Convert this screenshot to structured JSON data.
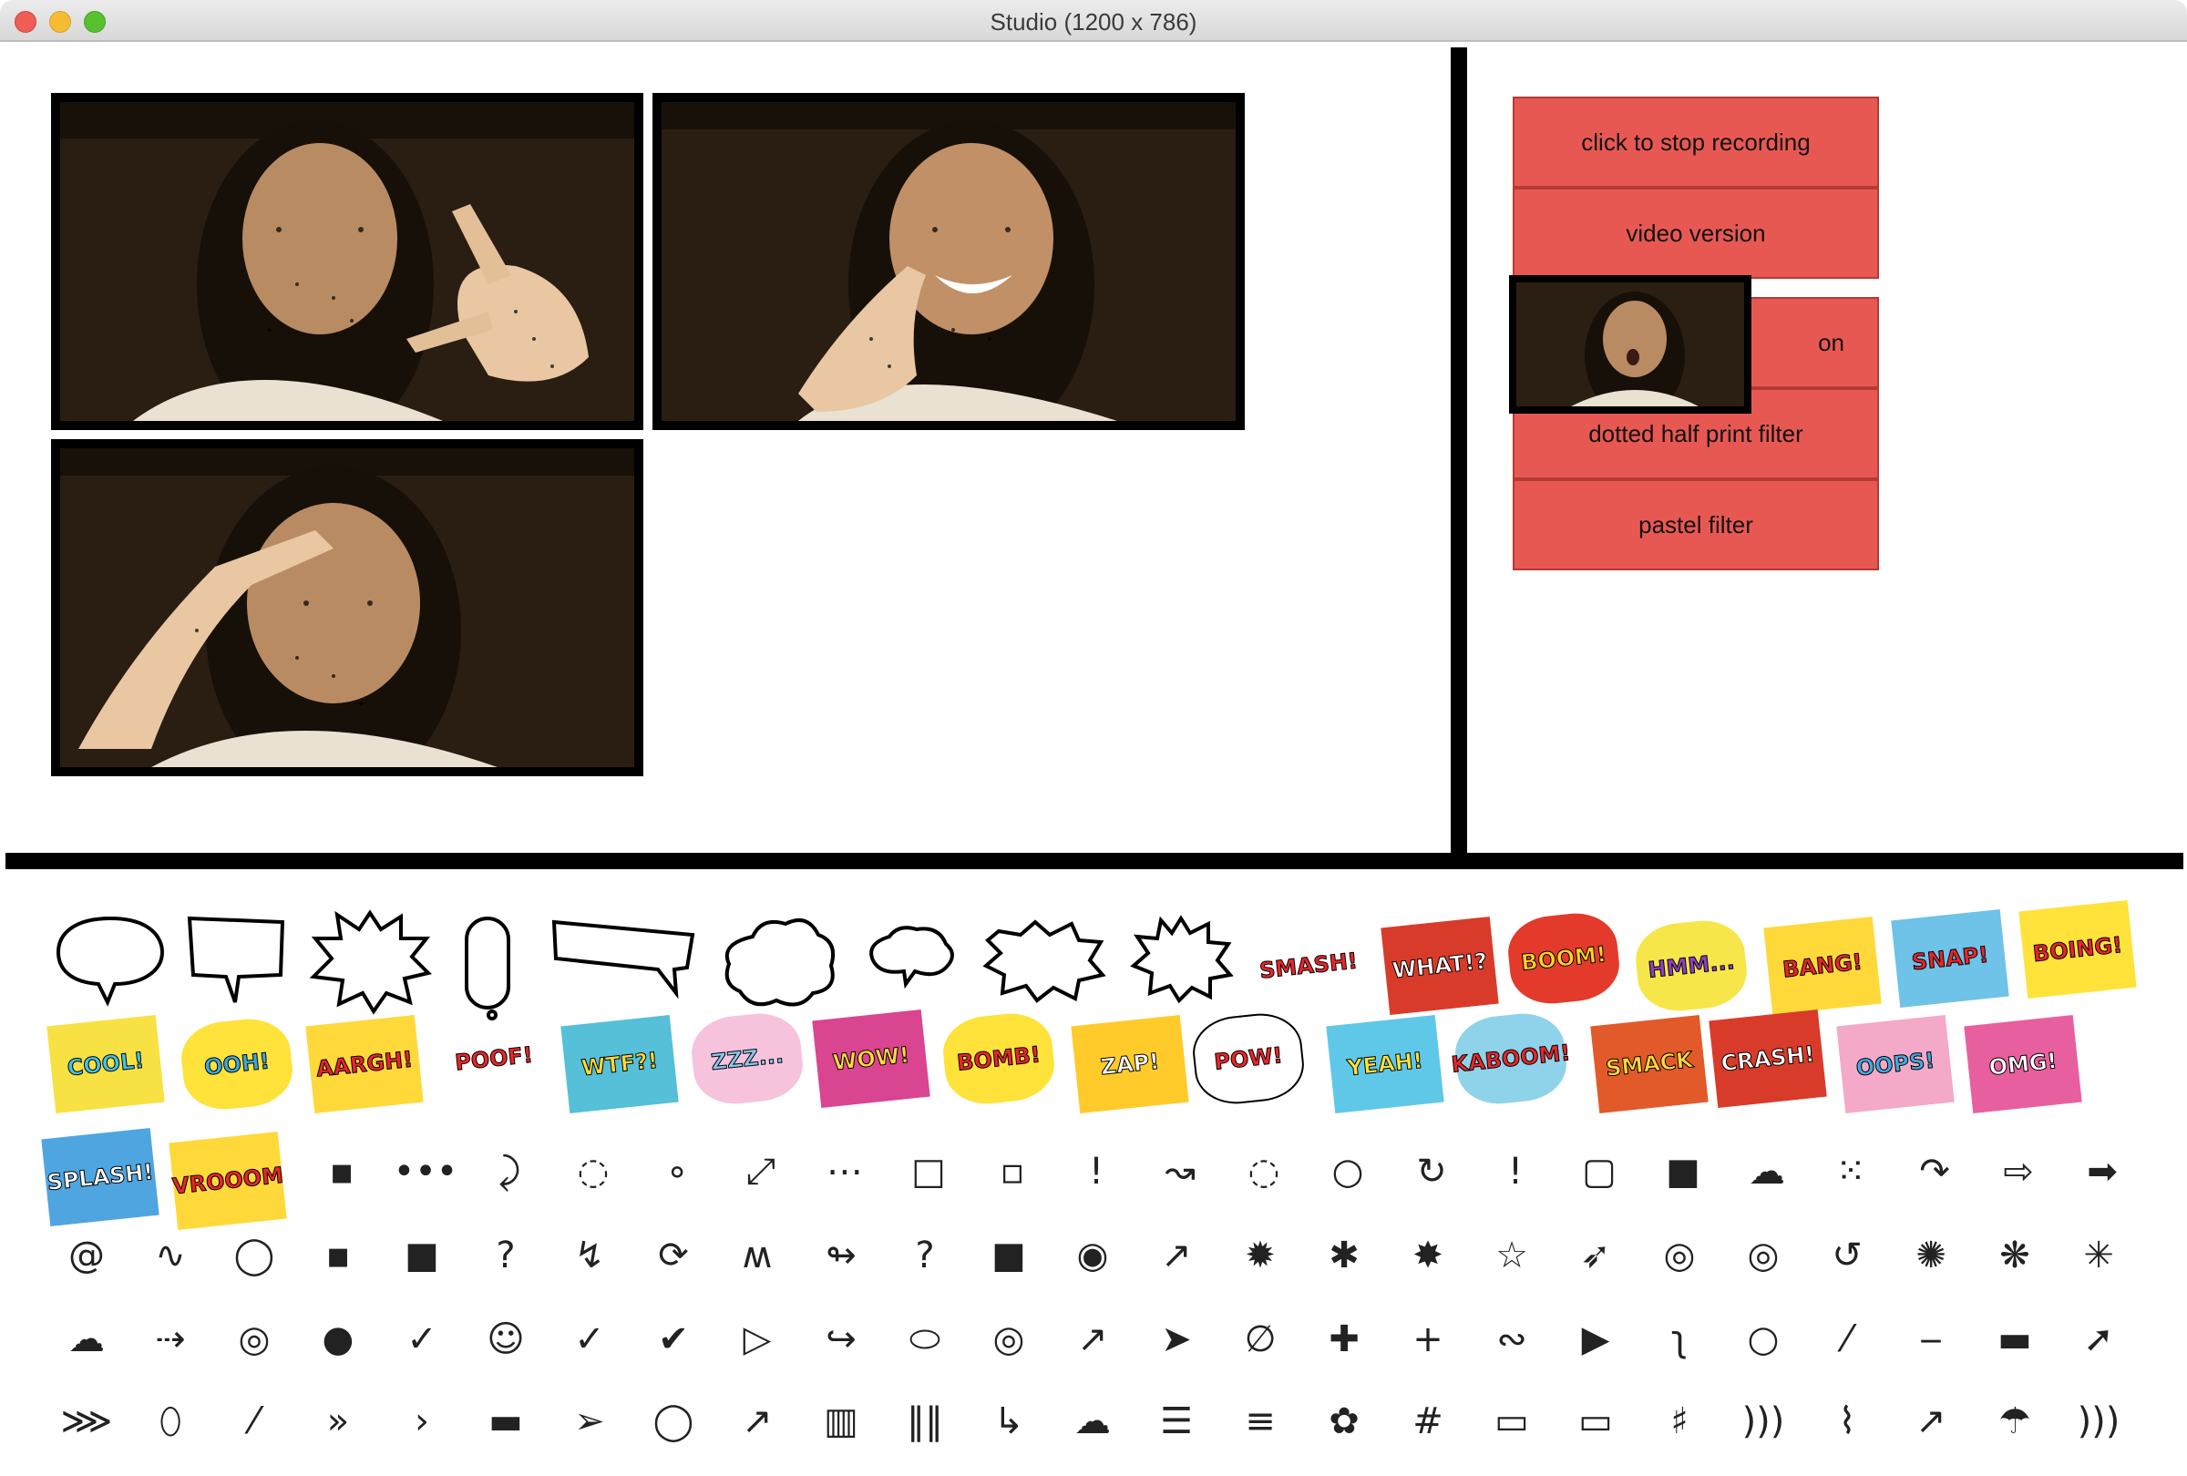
{
  "window": {
    "title": "Studio (1200 x 786)"
  },
  "controls": {
    "stop_recording": "click to stop recording",
    "video_version": "video version",
    "hidden_button_partial": "on",
    "dotted_filter": "dotted half print filter",
    "pastel_filter": "pastel filter"
  },
  "stickers": {
    "row2_words": [
      "SMASH!",
      "WHAT!?",
      "BOOM!",
      "HMM...",
      "BANG!",
      "SNAP!",
      "BOING!"
    ],
    "row3_words": [
      "COOL!",
      "OOH!",
      "AARGH!",
      "POOF!",
      "WTF?!",
      "ZZZ...",
      "WOW!",
      "BOMB!",
      "ZAP!",
      "POW!",
      "YEAH!",
      "KABOOM!",
      "SMACK",
      "CRASH!",
      "OOPS!",
      "OMG!"
    ],
    "row4_words": [
      "SPLASH!",
      "VROOOM"
    ]
  },
  "colors": {
    "button_bg": "#e85852",
    "divider": "#000000"
  }
}
